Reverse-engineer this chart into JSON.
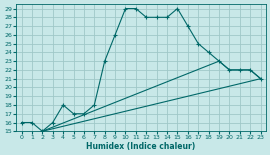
{
  "xlabel": "Humidex (Indice chaleur)",
  "bg_color": "#c8e8e8",
  "grid_color": "#a0c8c8",
  "line_color": "#006868",
  "xlim": [
    -0.5,
    23.5
  ],
  "ylim": [
    15,
    29.5
  ],
  "xticks": [
    0,
    1,
    2,
    3,
    4,
    5,
    6,
    7,
    8,
    9,
    10,
    11,
    12,
    13,
    14,
    15,
    16,
    17,
    18,
    19,
    20,
    21,
    22,
    23
  ],
  "yticks": [
    15,
    16,
    17,
    18,
    19,
    20,
    21,
    22,
    23,
    24,
    25,
    26,
    27,
    28,
    29
  ],
  "line1_x": [
    0,
    1,
    2,
    3,
    4,
    5,
    6,
    7,
    8,
    9,
    10,
    11,
    12,
    13,
    14,
    15,
    16,
    17,
    18,
    19,
    20,
    21,
    22,
    23
  ],
  "line1_y": [
    16,
    16,
    15,
    16,
    18,
    17,
    17,
    18,
    23,
    26,
    29,
    29,
    28,
    28,
    28,
    29,
    27,
    25,
    24,
    23,
    22,
    22,
    22,
    21
  ],
  "line2_x": [
    2,
    23
  ],
  "line2_y": [
    15,
    21
  ],
  "line3_x": [
    2,
    19,
    20,
    21,
    22,
    23
  ],
  "line3_y": [
    15,
    23,
    22,
    22,
    22,
    21
  ]
}
